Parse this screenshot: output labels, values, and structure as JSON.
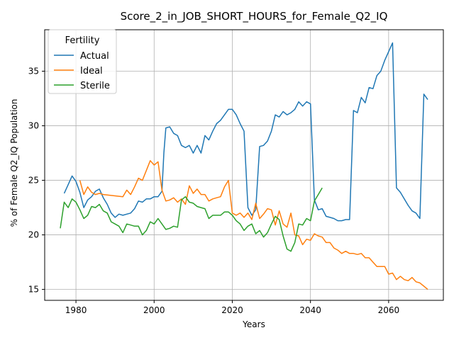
{
  "chart_data": {
    "type": "line",
    "title": "Score_2_in_JOB_SHORT_HOURS_for_Female_Q2_IQ",
    "xlabel": "Years",
    "ylabel": "% of Female Q2_IQ Population",
    "xlim": [
      1972,
      2074
    ],
    "ylim": [
      14,
      38.8
    ],
    "xticks": [
      1980,
      2000,
      2020,
      2040,
      2060
    ],
    "yticks": [
      15,
      20,
      25,
      30,
      35
    ],
    "grid": true,
    "legend": {
      "title": "Fertility",
      "position": "upper-left"
    },
    "series": [
      {
        "name": "Actual",
        "color": "#1f77b4",
        "points": [
          [
            1977,
            23.8
          ],
          [
            1978,
            24.6
          ],
          [
            1979,
            25.4
          ],
          [
            1980,
            24.9
          ],
          [
            1981,
            23.9
          ],
          [
            1982,
            22.5
          ],
          [
            1983,
            23.2
          ],
          [
            1984,
            23.5
          ],
          [
            1985,
            24.0
          ],
          [
            1986,
            24.2
          ],
          [
            1987,
            23.4
          ],
          [
            1988,
            22.8
          ],
          [
            1989,
            22.0
          ],
          [
            1990,
            21.6
          ],
          [
            1991,
            21.9
          ],
          [
            1992,
            21.8
          ],
          [
            1993,
            21.9
          ],
          [
            1994,
            22.0
          ],
          [
            1995,
            22.4
          ],
          [
            1996,
            23.1
          ],
          [
            1997,
            23.0
          ],
          [
            1998,
            23.3
          ],
          [
            1999,
            23.3
          ],
          [
            2000,
            23.5
          ],
          [
            2001,
            23.5
          ],
          [
            2002,
            24.0
          ],
          [
            2002.5,
            27.5
          ],
          [
            2003,
            29.8
          ],
          [
            2004,
            29.9
          ],
          [
            2005,
            29.3
          ],
          [
            2006,
            29.1
          ],
          [
            2007,
            28.2
          ],
          [
            2008,
            28.0
          ],
          [
            2009,
            28.2
          ],
          [
            2010,
            27.5
          ],
          [
            2011,
            28.2
          ],
          [
            2012,
            27.5
          ],
          [
            2013,
            29.1
          ],
          [
            2014,
            28.7
          ],
          [
            2015,
            29.5
          ],
          [
            2016,
            30.2
          ],
          [
            2017,
            30.5
          ],
          [
            2018,
            31.0
          ],
          [
            2019,
            31.5
          ],
          [
            2020,
            31.5
          ],
          [
            2021,
            31.0
          ],
          [
            2022,
            30.2
          ],
          [
            2023,
            29.5
          ],
          [
            2024,
            22.5
          ],
          [
            2025,
            21.8
          ],
          [
            2026,
            22.3
          ],
          [
            2027,
            28.1
          ],
          [
            2028,
            28.2
          ],
          [
            2029,
            28.6
          ],
          [
            2030,
            29.5
          ],
          [
            2031,
            31.0
          ],
          [
            2032,
            30.8
          ],
          [
            2033,
            31.3
          ],
          [
            2034,
            31.0
          ],
          [
            2035,
            31.2
          ],
          [
            2036,
            31.5
          ],
          [
            2037,
            32.2
          ],
          [
            2038,
            31.8
          ],
          [
            2039,
            32.2
          ],
          [
            2040,
            32.0
          ],
          [
            2041,
            23.2
          ],
          [
            2042,
            22.3
          ],
          [
            2043,
            22.4
          ],
          [
            2044,
            21.7
          ],
          [
            2045,
            21.6
          ],
          [
            2046,
            21.5
          ],
          [
            2047,
            21.3
          ],
          [
            2048,
            21.3
          ],
          [
            2049,
            21.4
          ],
          [
            2050,
            21.4
          ],
          [
            2051,
            31.4
          ],
          [
            2052,
            31.2
          ],
          [
            2053,
            32.6
          ],
          [
            2054,
            32.1
          ],
          [
            2055,
            33.5
          ],
          [
            2056,
            33.4
          ],
          [
            2057,
            34.6
          ],
          [
            2058,
            35.0
          ],
          [
            2059,
            36.0
          ],
          [
            2060,
            36.8
          ],
          [
            2061,
            37.6
          ],
          [
            2062,
            24.3
          ],
          [
            2063,
            23.9
          ],
          [
            2064,
            23.3
          ],
          [
            2065,
            22.7
          ],
          [
            2066,
            22.2
          ],
          [
            2067,
            22.0
          ],
          [
            2068,
            21.5
          ],
          [
            2069,
            32.9
          ],
          [
            2070,
            32.4
          ]
        ]
      },
      {
        "name": "Ideal",
        "color": "#ff7f0e",
        "points": [
          [
            1981,
            25.0
          ],
          [
            1982,
            23.7
          ],
          [
            1983,
            24.4
          ],
          [
            1984,
            23.9
          ],
          [
            1985,
            23.7
          ],
          [
            1986,
            23.8
          ],
          [
            1987,
            23.7
          ],
          [
            1992,
            23.5
          ],
          [
            1993,
            24.1
          ],
          [
            1994,
            23.7
          ],
          [
            1995,
            24.4
          ],
          [
            1996,
            25.2
          ],
          [
            1997,
            25.0
          ],
          [
            1998,
            25.9
          ],
          [
            1999,
            26.8
          ],
          [
            2000,
            26.4
          ],
          [
            2001,
            26.7
          ],
          [
            2002,
            24.1
          ],
          [
            2003,
            23.1
          ],
          [
            2004,
            23.2
          ],
          [
            2005,
            23.4
          ],
          [
            2006,
            23.0
          ],
          [
            2007,
            23.3
          ],
          [
            2008,
            22.8
          ],
          [
            2009,
            24.5
          ],
          [
            2010,
            23.8
          ],
          [
            2011,
            24.2
          ],
          [
            2012,
            23.7
          ],
          [
            2013,
            23.7
          ],
          [
            2014,
            23.1
          ],
          [
            2015,
            23.3
          ],
          [
            2016,
            23.4
          ],
          [
            2017,
            23.5
          ],
          [
            2018,
            24.4
          ],
          [
            2019,
            25.0
          ],
          [
            2020,
            22.0
          ],
          [
            2021,
            21.8
          ],
          [
            2022,
            22.0
          ],
          [
            2023,
            21.6
          ],
          [
            2024,
            22.0
          ],
          [
            2025,
            21.4
          ],
          [
            2026,
            22.9
          ],
          [
            2027,
            21.5
          ],
          [
            2028,
            21.9
          ],
          [
            2029,
            22.4
          ],
          [
            2030,
            22.3
          ],
          [
            2031,
            20.9
          ],
          [
            2032,
            22.2
          ],
          [
            2033,
            21.0
          ],
          [
            2034,
            20.7
          ],
          [
            2035,
            22.0
          ],
          [
            2036,
            20.0
          ],
          [
            2037,
            19.9
          ],
          [
            2038,
            19.1
          ],
          [
            2039,
            19.6
          ],
          [
            2040,
            19.5
          ],
          [
            2041,
            20.1
          ],
          [
            2042,
            19.9
          ],
          [
            2043,
            19.8
          ],
          [
            2044,
            19.3
          ],
          [
            2045,
            19.3
          ],
          [
            2046,
            18.8
          ],
          [
            2047,
            18.6
          ],
          [
            2048,
            18.3
          ],
          [
            2049,
            18.5
          ],
          [
            2050,
            18.3
          ],
          [
            2051,
            18.3
          ],
          [
            2052,
            18.2
          ],
          [
            2053,
            18.3
          ],
          [
            2054,
            17.9
          ],
          [
            2055,
            17.9
          ],
          [
            2056,
            17.5
          ],
          [
            2057,
            17.1
          ],
          [
            2058,
            17.1
          ],
          [
            2059,
            17.1
          ],
          [
            2060,
            16.4
          ],
          [
            2061,
            16.5
          ],
          [
            2062,
            15.9
          ],
          [
            2063,
            16.2
          ],
          [
            2064,
            15.9
          ],
          [
            2065,
            15.8
          ],
          [
            2066,
            16.1
          ],
          [
            2067,
            15.7
          ],
          [
            2068,
            15.6
          ],
          [
            2069,
            15.3
          ],
          [
            2070,
            15.0
          ]
        ]
      },
      {
        "name": "Sterile",
        "color": "#2ca02c",
        "points": [
          [
            1976,
            20.6
          ],
          [
            1977,
            23.0
          ],
          [
            1978,
            22.5
          ],
          [
            1979,
            23.3
          ],
          [
            1980,
            23.0
          ],
          [
            1981,
            22.3
          ],
          [
            1982,
            21.5
          ],
          [
            1983,
            21.8
          ],
          [
            1984,
            22.6
          ],
          [
            1985,
            22.5
          ],
          [
            1986,
            22.8
          ],
          [
            1987,
            22.2
          ],
          [
            1988,
            22.0
          ],
          [
            1989,
            21.2
          ],
          [
            1990,
            21.0
          ],
          [
            1991,
            20.8
          ],
          [
            1992,
            20.2
          ],
          [
            1993,
            21.0
          ],
          [
            1994,
            20.9
          ],
          [
            1995,
            20.8
          ],
          [
            1996,
            20.8
          ],
          [
            1997,
            20.0
          ],
          [
            1998,
            20.4
          ],
          [
            1999,
            21.2
          ],
          [
            2000,
            21.0
          ],
          [
            2001,
            21.5
          ],
          [
            2002,
            21.0
          ],
          [
            2003,
            20.5
          ],
          [
            2004,
            20.6
          ],
          [
            2005,
            20.8
          ],
          [
            2006,
            20.7
          ],
          [
            2007,
            23.2
          ],
          [
            2008,
            23.5
          ],
          [
            2009,
            23.0
          ],
          [
            2010,
            22.9
          ],
          [
            2011,
            22.6
          ],
          [
            2012,
            22.5
          ],
          [
            2013,
            22.4
          ],
          [
            2014,
            21.5
          ],
          [
            2015,
            21.8
          ],
          [
            2016,
            21.8
          ],
          [
            2017,
            21.8
          ],
          [
            2018,
            22.1
          ],
          [
            2019,
            22.1
          ],
          [
            2020,
            21.8
          ],
          [
            2021,
            21.3
          ],
          [
            2022,
            21.0
          ],
          [
            2023,
            20.4
          ],
          [
            2024,
            20.8
          ],
          [
            2025,
            21.0
          ],
          [
            2026,
            20.1
          ],
          [
            2027,
            20.4
          ],
          [
            2028,
            19.8
          ],
          [
            2029,
            20.2
          ],
          [
            2030,
            21.0
          ],
          [
            2031,
            21.7
          ],
          [
            2032,
            21.4
          ],
          [
            2033,
            19.9
          ],
          [
            2034,
            18.7
          ],
          [
            2035,
            18.5
          ],
          [
            2036,
            19.3
          ],
          [
            2037,
            21.0
          ],
          [
            2038,
            20.9
          ],
          [
            2039,
            21.5
          ],
          [
            2040,
            21.3
          ],
          [
            2041,
            23.1
          ],
          [
            2042,
            23.7
          ],
          [
            2043,
            24.3
          ]
        ]
      }
    ]
  }
}
